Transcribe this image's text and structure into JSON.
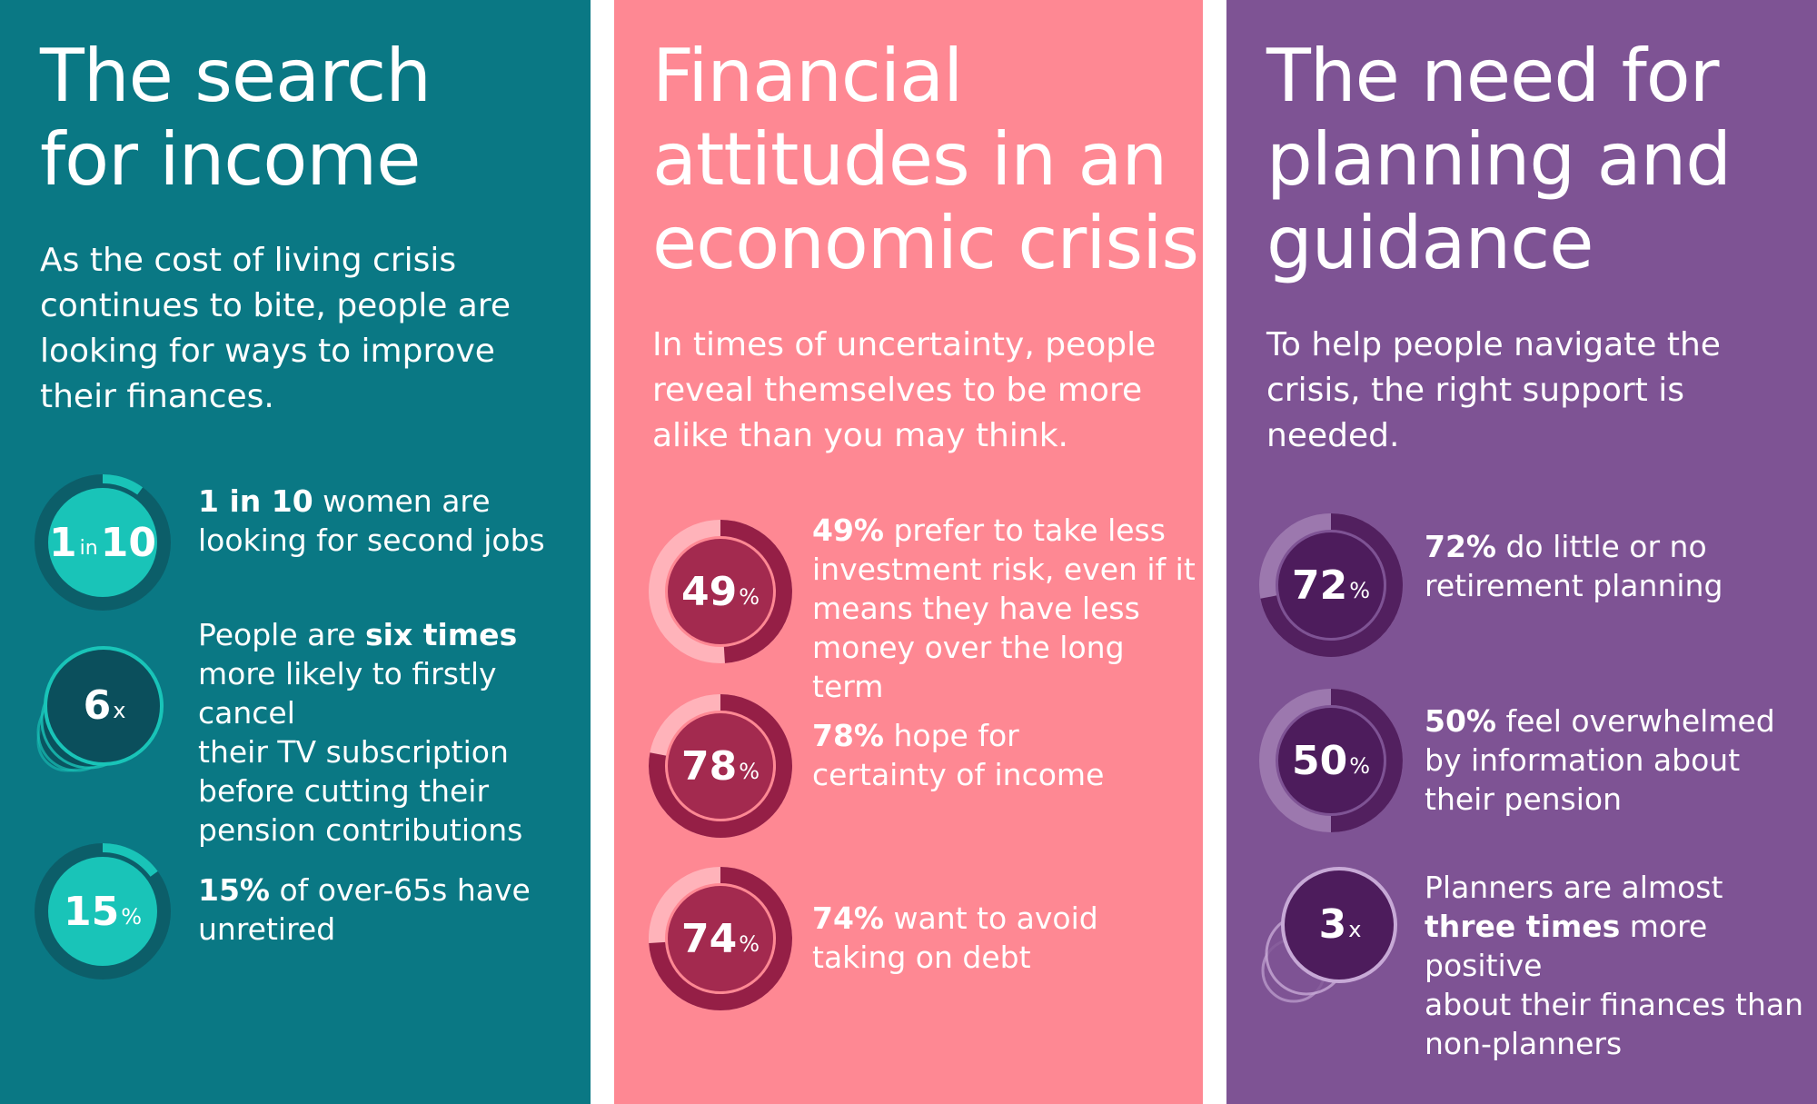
{
  "colors": {
    "teal_panel": "#0a7884",
    "teal_accent": "#19c4b8",
    "teal_dark_ring": "#0c5e69",
    "teal_deep": "#0b4f5c",
    "pink_panel": "#fe8893",
    "pink_fill": "#a32a4f",
    "pink_ring_dark": "#951f46",
    "pink_ring_light": "#ffb3ba",
    "purple_panel": "#7e5394",
    "purple_fill": "#4d1c5c",
    "purple_ring_dark": "#52205f",
    "purple_ring_light": "#9c78ae"
  },
  "panels": [
    {
      "title": "The search\nfor income",
      "intro": "As the cost of living crisis\ncontinues to bite, people are\nlooking for ways to improve\ntheir finances.",
      "stats": [
        {
          "icon": "ring-chart-icon",
          "value_big": "1",
          "value_mid": "in",
          "value_big2": "10",
          "fraction": 0.1,
          "text_bold": "1 in 10",
          "text_rest": " women are\nlooking for second jobs"
        },
        {
          "icon": "stacked-circles-icon",
          "value_big": "6",
          "value_small": "x",
          "text_pre": "People are ",
          "text_bold": "six times",
          "text_rest": "\nmore likely to firstly cancel\ntheir TV subscription\nbefore cutting their\npension contributions"
        },
        {
          "icon": "ring-chart-icon",
          "value_big": "15",
          "value_small": "%",
          "fraction": 0.15,
          "text_bold": "15%",
          "text_rest": " of over-65s have\nunretired"
        }
      ]
    },
    {
      "title": "Financial\nattitudes in an\neconomic crisis",
      "intro": "In times of uncertainty, people\nreveal themselves to be more\nalike than you may think.",
      "stats": [
        {
          "icon": "ring-chart-icon",
          "value_big": "49",
          "value_small": "%",
          "fraction": 0.49,
          "text_bold": "49%",
          "text_rest": " prefer to take less\ninvestment risk, even if it\nmeans they have less\nmoney over the long term"
        },
        {
          "icon": "ring-chart-icon",
          "value_big": "78",
          "value_small": "%",
          "fraction": 0.78,
          "text_bold": "78%",
          "text_rest": " hope for\ncertainty of income"
        },
        {
          "icon": "ring-chart-icon",
          "value_big": "74",
          "value_small": "%",
          "fraction": 0.74,
          "text_bold": "74%",
          "text_rest": " want to avoid\ntaking on debt"
        }
      ]
    },
    {
      "title": "The need for\nplanning and\nguidance",
      "intro": "To help people navigate the\ncrisis, the right support is\nneeded.",
      "stats": [
        {
          "icon": "ring-chart-icon",
          "value_big": "72",
          "value_small": "%",
          "fraction": 0.72,
          "text_bold": "72%",
          "text_rest": " do little or no\nretirement planning"
        },
        {
          "icon": "ring-chart-icon",
          "value_big": "50",
          "value_small": "%",
          "fraction": 0.5,
          "text_bold": "50%",
          "text_rest": " feel overwhelmed\nby information about\ntheir pension"
        },
        {
          "icon": "stacked-circles-icon",
          "value_big": "3",
          "value_small": "x",
          "text_pre": "Planners are almost\n",
          "text_bold": "three times",
          "text_rest": " more positive\nabout their finances than\nnon-planners"
        }
      ]
    }
  ]
}
